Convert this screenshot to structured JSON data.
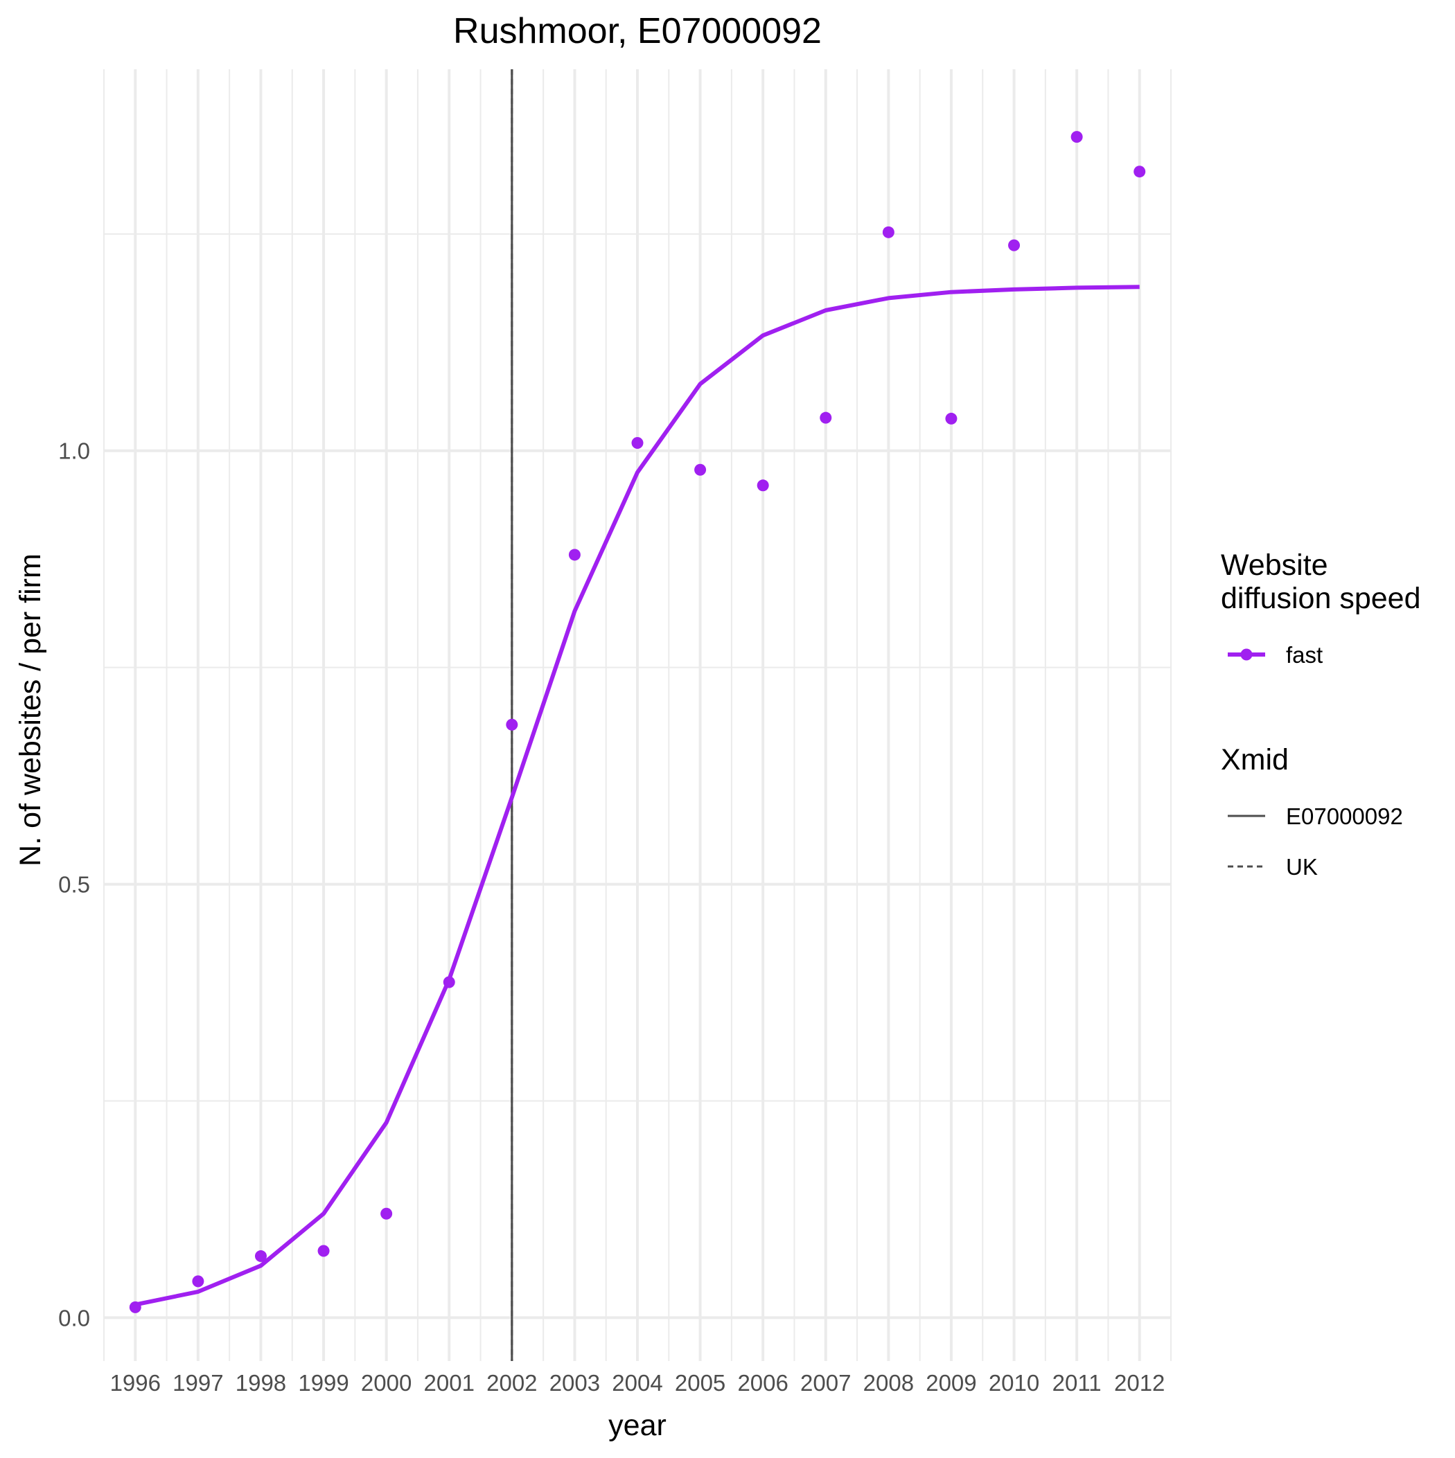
{
  "chart_data": {
    "type": "line",
    "title": "Rushmoor, E07000092",
    "xlabel": "year",
    "ylabel": "N. of websites / per firm",
    "xlim": [
      1995.5,
      2012.5
    ],
    "ylim": [
      -0.05,
      1.44
    ],
    "x_ticks": [
      "1996",
      "1997",
      "1998",
      "1999",
      "2000",
      "2001",
      "2002",
      "2003",
      "2004",
      "2005",
      "2006",
      "2007",
      "2008",
      "2009",
      "2010",
      "2011",
      "2012"
    ],
    "y_ticks": [
      {
        "value": 0.0,
        "label": "0.0"
      },
      {
        "value": 0.5,
        "label": "0.5"
      },
      {
        "value": 1.0,
        "label": "1.0"
      }
    ],
    "y_minor": [
      0.25,
      0.75,
      1.25
    ],
    "grid": true,
    "series": [
      {
        "name": "fast",
        "color": "#a020f0",
        "points": [
          {
            "x": 1996,
            "y": 0.012
          },
          {
            "x": 1997,
            "y": 0.042
          },
          {
            "x": 1998,
            "y": 0.071
          },
          {
            "x": 1999,
            "y": 0.077
          },
          {
            "x": 2000,
            "y": 0.12
          },
          {
            "x": 2001,
            "y": 0.387
          },
          {
            "x": 2002,
            "y": 0.684
          },
          {
            "x": 2003,
            "y": 0.88
          },
          {
            "x": 2004,
            "y": 1.009
          },
          {
            "x": 2005,
            "y": 0.978
          },
          {
            "x": 2006,
            "y": 0.96
          },
          {
            "x": 2007,
            "y": 1.038
          },
          {
            "x": 2008,
            "y": 1.252
          },
          {
            "x": 2009,
            "y": 1.037
          },
          {
            "x": 2010,
            "y": 1.237
          },
          {
            "x": 2011,
            "y": 1.362
          },
          {
            "x": 2012,
            "y": 1.322
          }
        ],
        "fit": [
          {
            "x": 1996,
            "y": 0.015
          },
          {
            "x": 1997,
            "y": 0.03
          },
          {
            "x": 1998,
            "y": 0.06
          },
          {
            "x": 1999,
            "y": 0.12
          },
          {
            "x": 2000,
            "y": 0.225
          },
          {
            "x": 2001,
            "y": 0.39
          },
          {
            "x": 2002,
            "y": 0.6
          },
          {
            "x": 2003,
            "y": 0.815
          },
          {
            "x": 2004,
            "y": 0.975
          },
          {
            "x": 2005,
            "y": 1.077
          },
          {
            "x": 2006,
            "y": 1.133
          },
          {
            "x": 2007,
            "y": 1.162
          },
          {
            "x": 2008,
            "y": 1.176
          },
          {
            "x": 2009,
            "y": 1.183
          },
          {
            "x": 2010,
            "y": 1.186
          },
          {
            "x": 2011,
            "y": 1.188
          },
          {
            "x": 2012,
            "y": 1.189
          }
        ]
      }
    ],
    "vlines": [
      {
        "name": "E07000092",
        "x": 2002,
        "linetype": "solid",
        "color": "#4d4d4d"
      },
      {
        "name": "UK",
        "x": 2002,
        "linetype": "dashed",
        "color": "#4d4d4d"
      }
    ],
    "legends": [
      {
        "title_lines": [
          "Website",
          "diffusion speed"
        ],
        "items": [
          {
            "label": "fast",
            "kind": "line-point",
            "color": "#a020f0"
          }
        ]
      },
      {
        "title_lines": [
          "Xmid"
        ],
        "items": [
          {
            "label": "E07000092",
            "kind": "solid",
            "color": "#4d4d4d"
          },
          {
            "label": "UK",
            "kind": "dashed",
            "color": "#4d4d4d"
          }
        ]
      }
    ],
    "legend_position": "right"
  }
}
